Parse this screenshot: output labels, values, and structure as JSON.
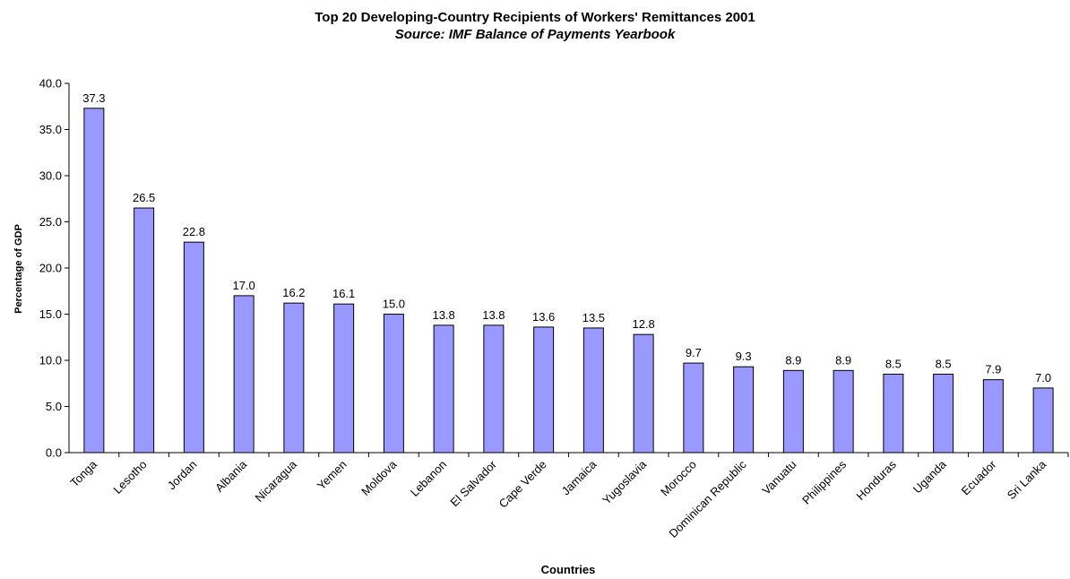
{
  "chart_data": {
    "type": "bar",
    "title": "Top 20 Developing-Country Recipients of Workers' Remittances 2001",
    "subtitle": "Source: IMF Balance of Payments Yearbook",
    "xlabel": "Countries",
    "ylabel": "Percentage of GDP",
    "ylim": [
      0,
      40
    ],
    "ytick_step": 5,
    "ytick_labels": [
      "0.0",
      "5.0",
      "10.0",
      "15.0",
      "20.0",
      "25.0",
      "30.0",
      "35.0",
      "40.0"
    ],
    "grid": false,
    "legend": "none",
    "bar_color": "#9999ff",
    "categories": [
      "Tonga",
      "Lesotho",
      "Jordan",
      "Albania",
      "Nicaragua",
      "Yemen",
      "Moldova",
      "Lebanon",
      "El Salvador",
      "Cape Verde",
      "Jamaica",
      "Yugoslavia",
      "Morocco",
      "Dominican Republic",
      "Vanuatu",
      "Philippines",
      "Honduras",
      "Uganda",
      "Ecuador",
      "Sri Lanka"
    ],
    "values": [
      37.3,
      26.5,
      22.8,
      17.0,
      16.2,
      16.1,
      15.0,
      13.8,
      13.8,
      13.6,
      13.5,
      12.8,
      9.7,
      9.3,
      8.9,
      8.9,
      8.5,
      8.5,
      7.9,
      7.0
    ],
    "value_labels": [
      "37.3",
      "26.5",
      "22.8",
      "17.0",
      "16.2",
      "16.1",
      "15.0",
      "13.8",
      "13.8",
      "13.6",
      "13.5",
      "12.8",
      "9.7",
      "9.3",
      "8.9",
      "8.9",
      "8.5",
      "8.5",
      "7.9",
      "7.0"
    ]
  }
}
